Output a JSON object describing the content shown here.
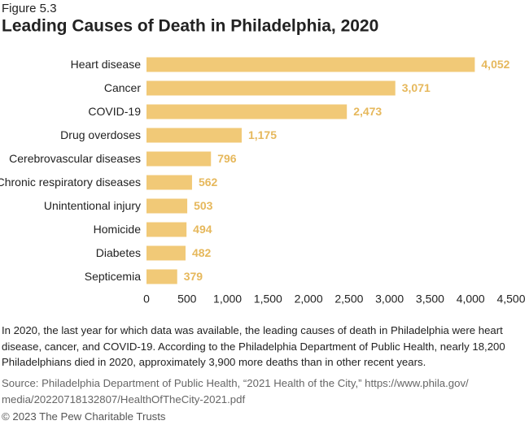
{
  "chart_data": {
    "type": "bar",
    "orientation": "horizontal",
    "figure_label": "Figure 5.3",
    "title": "Leading Causes of Death in Philadelphia, 2020",
    "categories": [
      "Heart disease",
      "Cancer",
      "COVID-19",
      "Drug overdoses",
      "Cerebrovascular diseases",
      "Chronic respiratory diseases",
      "Unintentional injury",
      "Homicide",
      "Diabetes",
      "Septicemia"
    ],
    "values": [
      4052,
      3071,
      2473,
      1175,
      796,
      562,
      503,
      494,
      482,
      379
    ],
    "value_labels": [
      "4,052",
      "3,071",
      "2,473",
      "1,175",
      "796",
      "562",
      "503",
      "494",
      "482",
      "379"
    ],
    "color": "#f1c977",
    "label_color": "#e6b85c",
    "xlim": [
      0,
      4500
    ],
    "xticks": [
      0,
      500,
      {
        "value": 1000,
        "label": "1,000"
      },
      {
        "value": 1500,
        "label": "1,500"
      },
      {
        "value": 2000,
        "label": "2,000"
      },
      {
        "value": 2500,
        "label": "2,500"
      },
      {
        "value": 3000,
        "label": "3,000"
      },
      {
        "value": 3500,
        "label": "3,500"
      },
      {
        "value": 4000,
        "label": "4,000"
      },
      {
        "value": 4500,
        "label": "4,500"
      }
    ],
    "grid": false,
    "note": [
      "In 2020, the last year for which data was available, the leading causes of death in Philadelphia were heart",
      "disease, cancer, and COVID-19. According to the Philadelphia Department of Public Health, nearly 18,200",
      "Philadelphians died in 2020, approximately 3,900 more deaths than in other recent years."
    ],
    "source": [
      "Source: Philadelphia Department of Public Health, “2021 Health of the City,” https://www.phila.gov/",
      "media/20220718132807/HealthOfTheCity-2021.pdf"
    ],
    "copyright": "© 2023 The Pew Charitable Trusts"
  }
}
